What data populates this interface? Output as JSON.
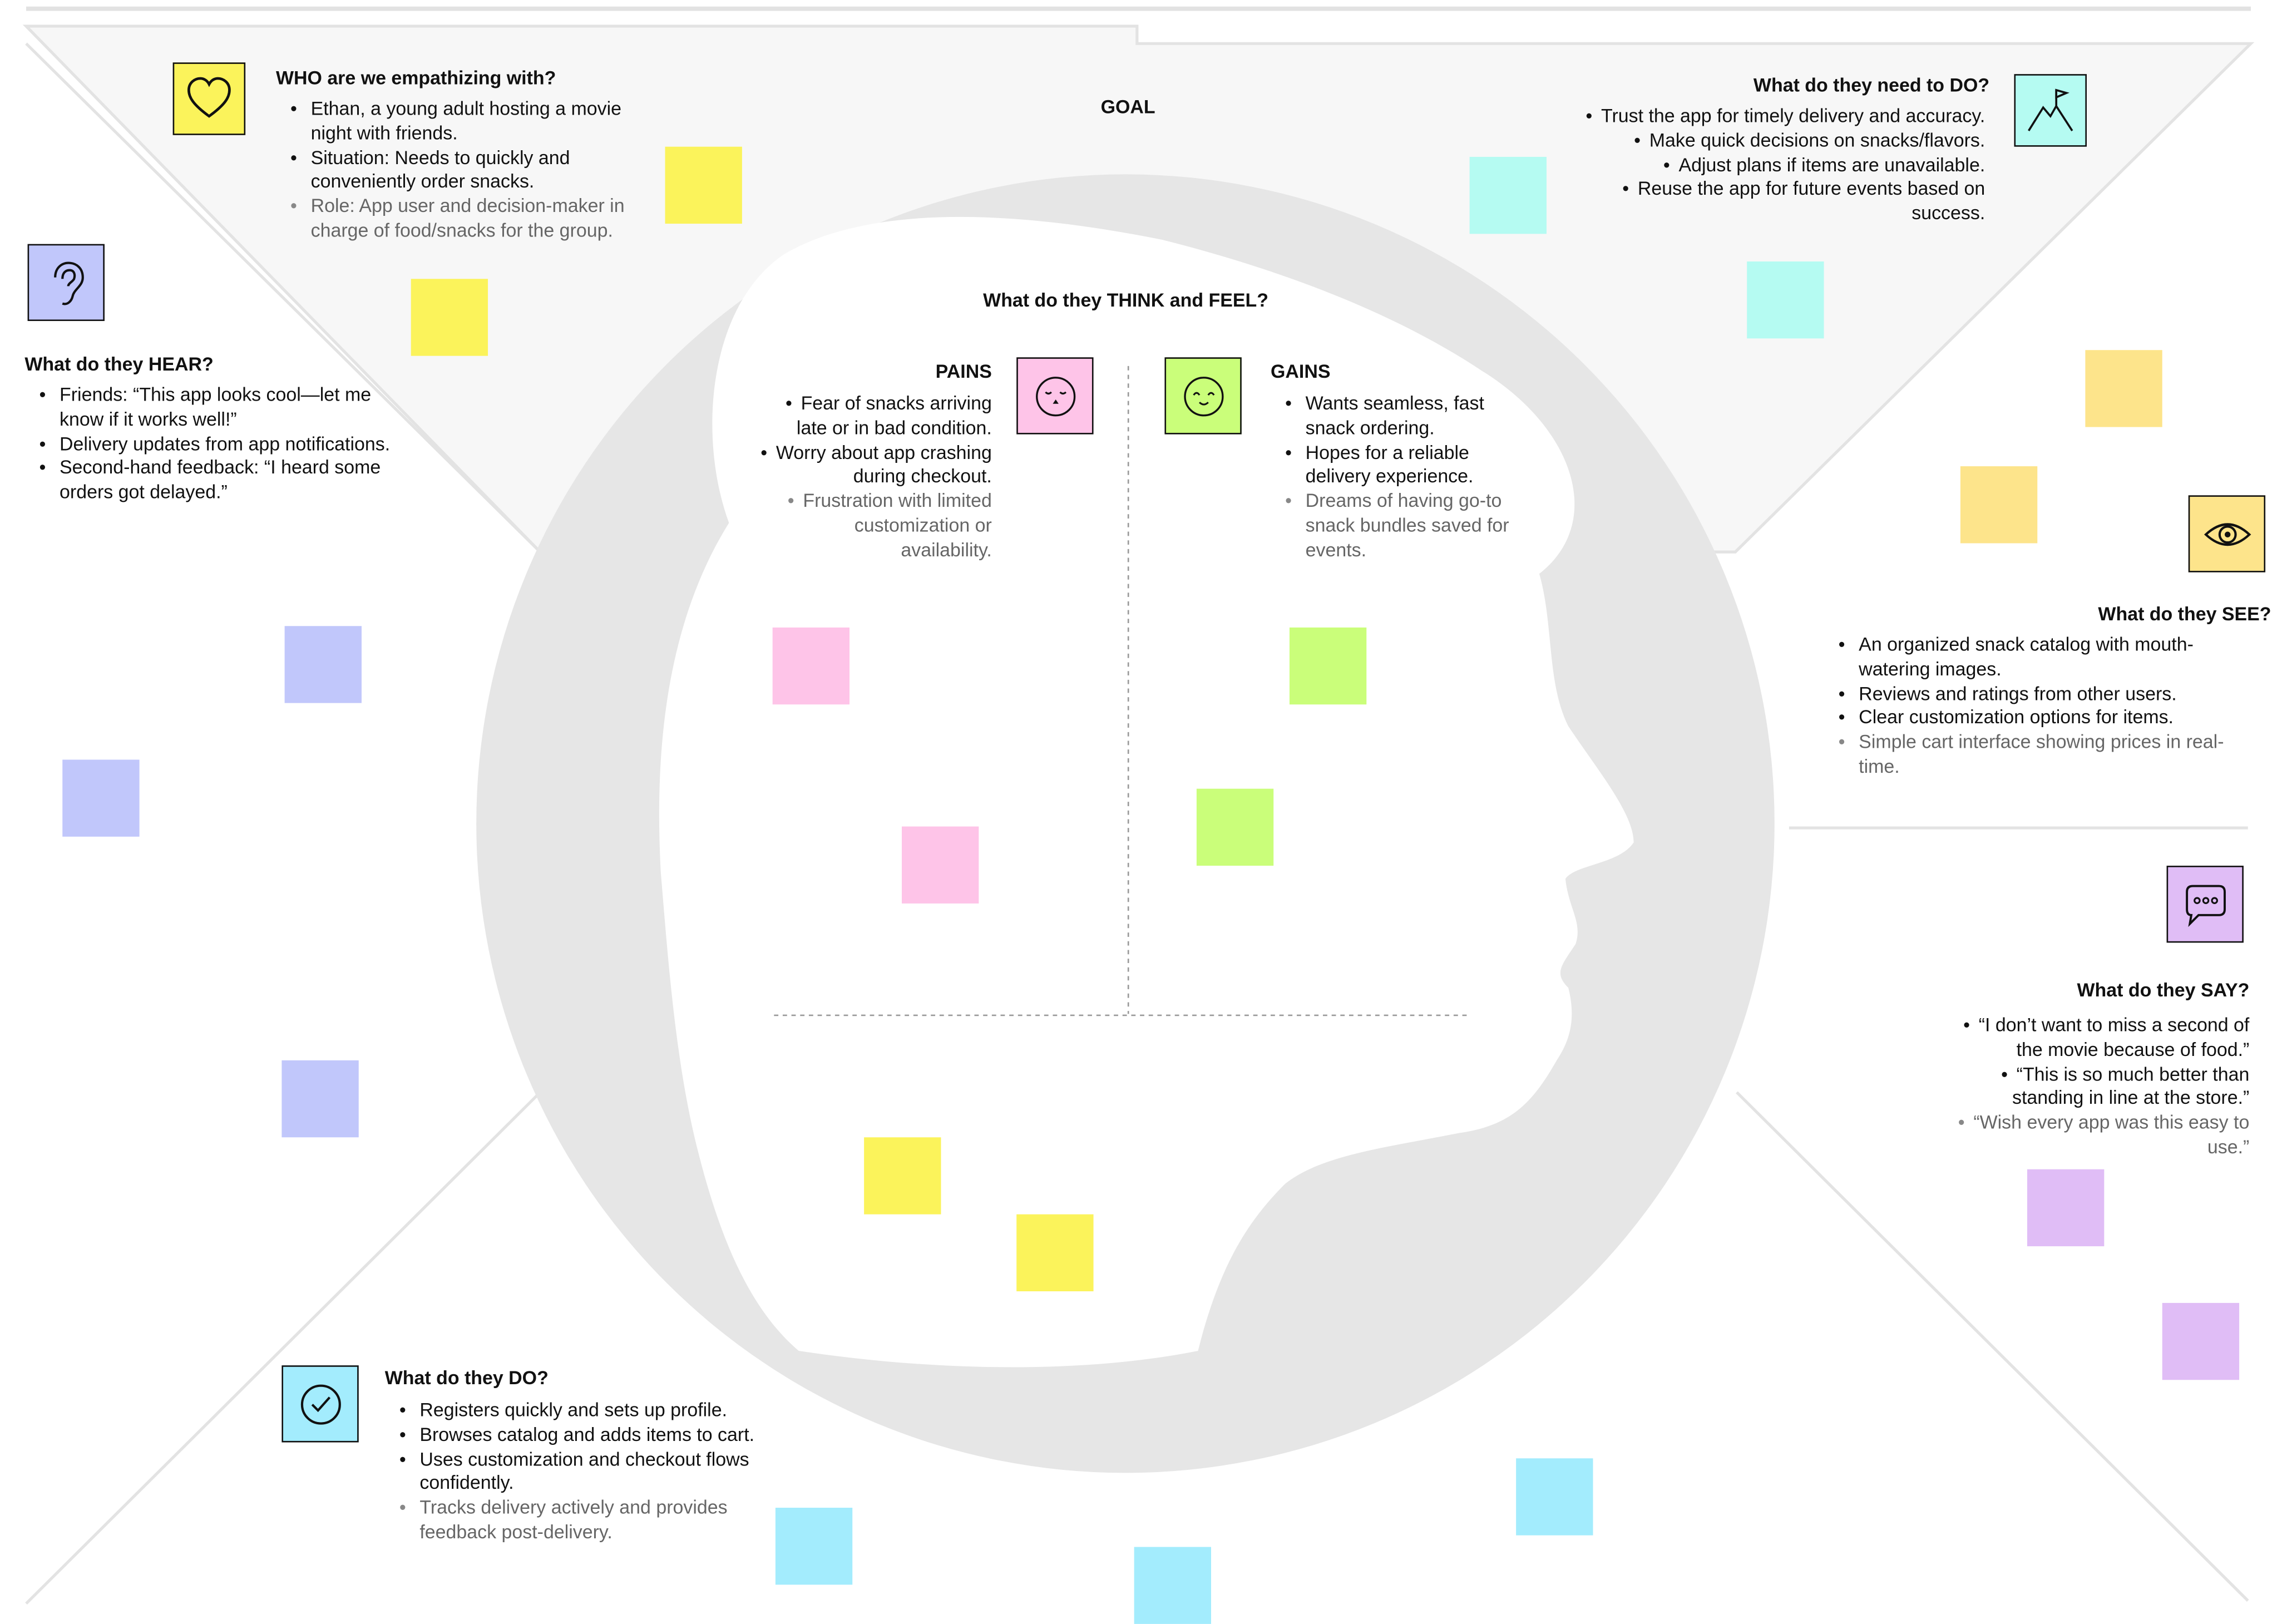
{
  "canvas": {
    "goal_label": "GOAL",
    "think_feel_heading": "What do they THINK and FEEL?"
  },
  "colors": {
    "yellow": "#fbf35b",
    "lavender": "#c1c7fb",
    "mint": "#b5fbf2",
    "orange": "#fde48b",
    "pink": "#fec4e8",
    "lime": "#cafe7a",
    "violet": "#e0bdf6",
    "sky": "#a3ecfd",
    "head_silhouette": "#e6e6e6",
    "goal_triangle": "#f7f7f7"
  },
  "who": {
    "heading": "WHO are we empathizing with?",
    "icon": "heart-icon",
    "items": [
      "Ethan, a young adult hosting a movie night with friends.",
      "Situation: Needs to quickly and conveniently order snacks.",
      "Role: App user and decision-maker in charge of food/snacks for the group."
    ]
  },
  "need_to_do": {
    "heading": "What do they need to DO?",
    "icon": "mountain-flag-icon",
    "items": [
      "Trust the app for timely delivery and accuracy.",
      "Make quick decisions on snacks/flavors.",
      "Adjust plans if items are unavailable.",
      "Reuse the app for future events based on success."
    ]
  },
  "hear": {
    "heading": "What do they HEAR?",
    "icon": "ear-icon",
    "items": [
      "Friends: “This app looks cool—let me know if it works well!”",
      "Delivery updates from app notifications.",
      "Second-hand feedback: “I heard some orders got delayed.”"
    ]
  },
  "pains": {
    "heading": "PAINS",
    "icon": "sad-face-icon",
    "items": [
      "Fear of snacks arriving late or in bad condition.",
      "Worry about app crashing during checkout.",
      "Frustration with limited customization or availability."
    ]
  },
  "gains": {
    "heading": "GAINS",
    "icon": "happy-face-icon",
    "items": [
      "Wants seamless, fast snack ordering.",
      "Hopes for a reliable delivery experience.",
      "Dreams of having go-to snack bundles saved for events."
    ]
  },
  "see": {
    "heading": "What do they SEE?",
    "icon": "eye-icon",
    "items": [
      "An organized snack catalog with mouth-watering images.",
      "Reviews and ratings from other users.",
      "Clear customization options for items.",
      "Simple cart interface showing prices in real-time."
    ]
  },
  "say": {
    "heading": "What do they SAY?",
    "icon": "speech-bubble-icon",
    "items": [
      "“I don’t want to miss a second of the movie because of food.”",
      "“This is so much better than standing in line at the store.”",
      "“Wish every app was this easy to use.”"
    ]
  },
  "do": {
    "heading": "What do they DO?",
    "icon": "check-circle-icon",
    "items": [
      "Registers quickly and sets up profile.",
      "Browses catalog and adds items to cart.",
      "Uses customization and checkout flows confidently.",
      "Tracks delivery actively and provides feedback post-delivery."
    ]
  }
}
